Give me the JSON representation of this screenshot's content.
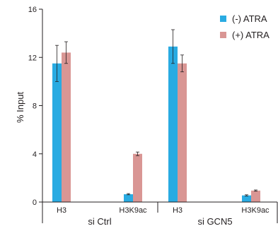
{
  "chart_data": {
    "type": "bar",
    "title": "",
    "xlabel": "",
    "ylabel": "% Input",
    "ylim": [
      0,
      16
    ],
    "yticks": [
      0,
      4,
      8,
      12,
      16
    ],
    "grid": false,
    "legend_position": "top-right",
    "groups": [
      {
        "label": "si Ctrl",
        "categories": [
          "H3",
          "H3K9ac"
        ]
      },
      {
        "label": "si GCN5",
        "categories": [
          "H3",
          "H3K9ac"
        ]
      }
    ],
    "categories": [
      "H3",
      "H3K9ac",
      "H3",
      "H3K9ac"
    ],
    "series": [
      {
        "name": "(-) ATRA",
        "color": "#29abe2",
        "values": [
          11.5,
          0.65,
          12.9,
          0.55
        ],
        "errors": [
          1.5,
          0.05,
          1.4,
          0.05
        ]
      },
      {
        "name": "(+) ATRA",
        "color": "#d99694",
        "values": [
          12.4,
          4.0,
          11.5,
          0.95
        ],
        "errors": [
          0.9,
          0.15,
          0.7,
          0.05
        ]
      }
    ]
  }
}
